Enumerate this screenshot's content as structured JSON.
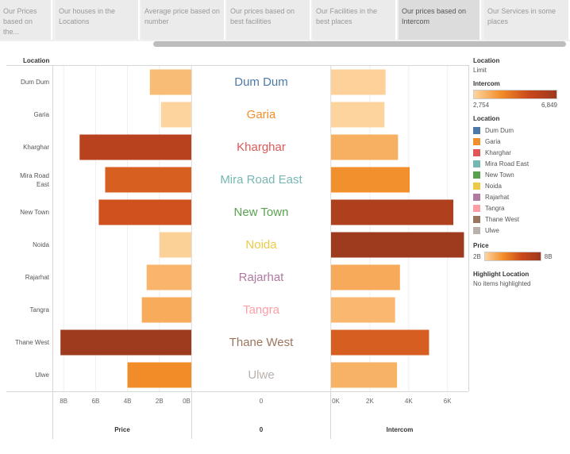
{
  "tabs": [
    {
      "label": "Our Prices based on the..."
    },
    {
      "label": "Our houses in the Locations"
    },
    {
      "label": "Average price based on number"
    },
    {
      "label": "Our prices based on best facilities"
    },
    {
      "label": "Our Facilities in the best places"
    },
    {
      "label": "Our prices based on Intercom"
    },
    {
      "label": "Our Services in some places"
    }
  ],
  "row_header": "Location",
  "chart_data": {
    "type": "bar",
    "categories": [
      "Dum Dum",
      "Garia",
      "Kharghar",
      "Mira Road East",
      "New Town",
      "Noida",
      "Rajarhat",
      "Tangra",
      "Thane West",
      "Ulwe"
    ],
    "series": [
      {
        "name": "Price",
        "values": [
          2.6,
          1.9,
          7.0,
          5.4,
          5.8,
          2.0,
          2.8,
          3.1,
          8.2,
          4.0
        ],
        "unit": "B"
      },
      {
        "name": "Intercom",
        "values": [
          2810,
          2754,
          3450,
          4050,
          6300,
          6849,
          3550,
          3300,
          5050,
          3400
        ]
      }
    ],
    "price_axis": {
      "title": "Price",
      "ticks": [
        "8B",
        "6B",
        "4B",
        "2B",
        "0B"
      ],
      "range": [
        0,
        8.2
      ]
    },
    "middle_axis": {
      "title": "0",
      "ticks": [
        "0"
      ]
    },
    "intercom_axis": {
      "title": "Intercom",
      "ticks": [
        "0K",
        "2K",
        "4K",
        "6K"
      ],
      "range": [
        0,
        7000
      ]
    },
    "location_colors": [
      "#4e79a7",
      "#f28e2b",
      "#e15759",
      "#76b7b2",
      "#59a14f",
      "#edc948",
      "#b07aa1",
      "#ff9da7",
      "#9c755f",
      "#bab0ac"
    ]
  },
  "legend": {
    "location_filter_title": "Location",
    "location_filter_value": "Limit",
    "intercom_title": "Intercom",
    "intercom_min": "2,754",
    "intercom_max": "6,849",
    "location_title": "Location",
    "price_title": "Price",
    "price_min": "2B",
    "price_max": "8B",
    "highlight_title": "Highlight Location",
    "highlight_value": "No items highlighted"
  }
}
